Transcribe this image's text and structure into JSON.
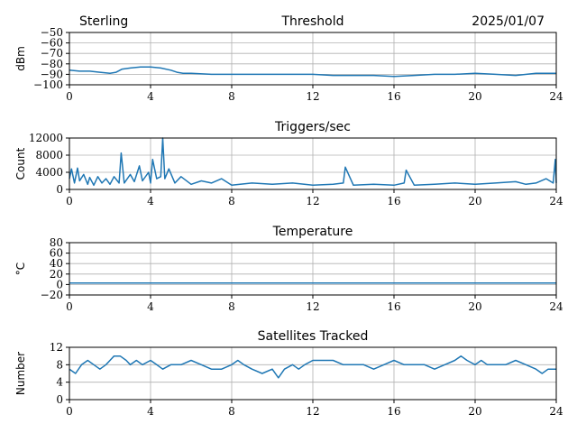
{
  "header": {
    "station": "Sterling",
    "date": "2025/01/07"
  },
  "colors": {
    "series": "#1f77b4",
    "grid": "#b0b0b0"
  },
  "chart_data": [
    {
      "id": "threshold",
      "type": "line",
      "title": "Threshold",
      "ylabel": "dBm",
      "xlabel": "",
      "xlim": [
        0,
        24
      ],
      "ylim": [
        -100,
        -50
      ],
      "xticks": [
        0,
        4,
        8,
        12,
        16,
        20,
        24
      ],
      "yticks": [
        -100,
        -90,
        -80,
        -70,
        -60,
        -50
      ],
      "ytick_labels": [
        "−100",
        "−90",
        "−80",
        "−70",
        "−60",
        "−50"
      ],
      "grid": true,
      "x": [
        0,
        0.5,
        1,
        1.5,
        2,
        2.3,
        2.6,
        3,
        3.5,
        4,
        4.5,
        5,
        5.3,
        5.6,
        6,
        7,
        8,
        9,
        10,
        11,
        12,
        13,
        14,
        15,
        16,
        17,
        18,
        19,
        20,
        21,
        22,
        23,
        24
      ],
      "y": [
        -86,
        -87,
        -87,
        -88,
        -89,
        -88,
        -85,
        -84,
        -83,
        -83,
        -84,
        -86,
        -88,
        -89,
        -89,
        -90,
        -90,
        -90,
        -90,
        -90,
        -90,
        -91,
        -91,
        -91,
        -92,
        -91,
        -90,
        -90,
        -89,
        -90,
        -91,
        -89,
        -89
      ]
    },
    {
      "id": "triggers",
      "type": "line",
      "title": "Triggers/sec",
      "ylabel": "Count",
      "xlabel": "",
      "xlim": [
        0,
        24
      ],
      "ylim": [
        0,
        12000
      ],
      "xticks": [
        0,
        4,
        8,
        12,
        16,
        20,
        24
      ],
      "yticks": [
        0,
        4000,
        8000,
        12000
      ],
      "ytick_labels": [
        "0",
        "4000",
        "8000",
        "12000"
      ],
      "grid": true,
      "x": [
        0,
        0.1,
        0.25,
        0.4,
        0.5,
        0.7,
        0.9,
        1.0,
        1.2,
        1.4,
        1.6,
        1.8,
        2.0,
        2.2,
        2.45,
        2.55,
        2.7,
        3.0,
        3.2,
        3.45,
        3.6,
        3.9,
        4.0,
        4.1,
        4.3,
        4.5,
        4.6,
        4.7,
        4.9,
        5.2,
        5.5,
        6.0,
        6.5,
        7.0,
        7.5,
        8.0,
        9.0,
        10.0,
        11.0,
        12.0,
        13.0,
        13.5,
        13.6,
        14.0,
        15.0,
        16.0,
        16.5,
        16.6,
        17.0,
        18.0,
        19.0,
        20.0,
        21.0,
        22.0,
        22.5,
        23.0,
        23.5,
        23.85,
        23.95,
        24.0
      ],
      "y": [
        2500,
        4800,
        1500,
        5000,
        2000,
        3500,
        1200,
        2800,
        1000,
        3000,
        1500,
        2500,
        1200,
        3000,
        1500,
        8500,
        1500,
        3500,
        1800,
        5500,
        2000,
        4000,
        1500,
        7000,
        2500,
        3000,
        12000,
        2500,
        4800,
        1500,
        3000,
        1200,
        2000,
        1500,
        2500,
        1000,
        1500,
        1200,
        1500,
        1000,
        1200,
        1500,
        5200,
        1000,
        1200,
        1000,
        1500,
        4500,
        1000,
        1200,
        1500,
        1200,
        1500,
        1800,
        1200,
        1500,
        2500,
        1500,
        7000,
        1500
      ]
    },
    {
      "id": "temperature",
      "type": "line",
      "title": "Temperature",
      "ylabel": "°C",
      "xlabel": "",
      "xlim": [
        0,
        24
      ],
      "ylim": [
        -20,
        80
      ],
      "xticks": [
        0,
        4,
        8,
        12,
        16,
        20,
        24
      ],
      "yticks": [
        -20,
        0,
        20,
        40,
        60,
        80
      ],
      "ytick_labels": [
        "−20",
        "0",
        "20",
        "40",
        "60",
        "80"
      ],
      "grid": true,
      "x": [
        0,
        24
      ],
      "y": [
        3,
        3
      ]
    },
    {
      "id": "satellites",
      "type": "line",
      "title": "Satellites Tracked",
      "ylabel": "Number",
      "xlabel": "",
      "xlim": [
        0,
        24
      ],
      "ylim": [
        0,
        12
      ],
      "xticks": [
        0,
        4,
        8,
        12,
        16,
        20,
        24
      ],
      "yticks": [
        0,
        4,
        8,
        12
      ],
      "ytick_labels": [
        "0",
        "4",
        "8",
        "12"
      ],
      "grid": true,
      "x": [
        0,
        0.3,
        0.6,
        0.9,
        1.2,
        1.5,
        1.8,
        2.0,
        2.2,
        2.5,
        2.8,
        3.0,
        3.3,
        3.6,
        4.0,
        4.3,
        4.6,
        5.0,
        5.5,
        6.0,
        6.5,
        7.0,
        7.5,
        8.0,
        8.3,
        8.6,
        9.0,
        9.5,
        10.0,
        10.3,
        10.6,
        11.0,
        11.3,
        11.6,
        12.0,
        12.5,
        13.0,
        13.5,
        14.0,
        14.5,
        15.0,
        15.5,
        16.0,
        16.5,
        17.0,
        17.5,
        18.0,
        18.5,
        19.0,
        19.3,
        19.6,
        20.0,
        20.3,
        20.6,
        21.0,
        21.5,
        22.0,
        22.5,
        23.0,
        23.3,
        23.6,
        24.0
      ],
      "y": [
        7,
        6,
        8,
        9,
        8,
        7,
        8,
        9,
        10,
        10,
        9,
        8,
        9,
        8,
        9,
        8,
        7,
        8,
        8,
        9,
        8,
        7,
        7,
        8,
        9,
        8,
        7,
        6,
        7,
        5,
        7,
        8,
        7,
        8,
        9,
        9,
        9,
        8,
        8,
        8,
        7,
        8,
        9,
        8,
        8,
        8,
        7,
        8,
        9,
        10,
        9,
        8,
        9,
        8,
        8,
        8,
        9,
        8,
        7,
        6,
        7,
        7
      ]
    }
  ]
}
